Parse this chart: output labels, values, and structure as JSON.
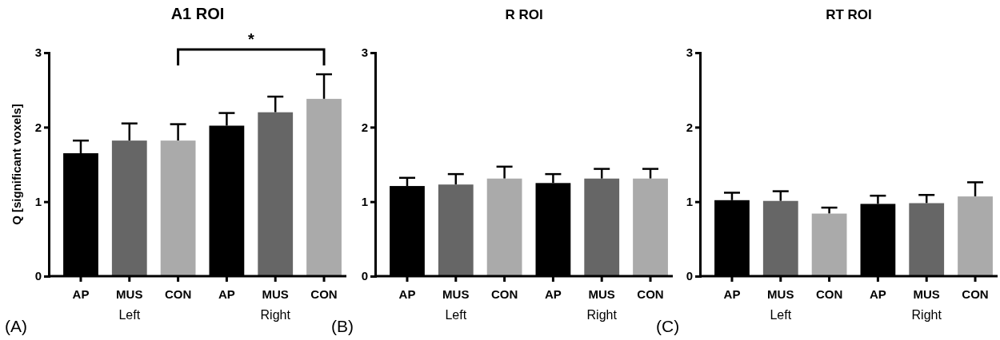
{
  "chart_data": [
    {
      "type": "bar",
      "title": "A1 ROI",
      "ylabel": "Q [significant voxels]",
      "categories": [
        "AP",
        "MUS",
        "CON",
        "AP",
        "MUS",
        "CON"
      ],
      "values": [
        1.65,
        1.82,
        1.82,
        2.02,
        2.2,
        2.38
      ],
      "colors": [
        "#000000",
        "#666666",
        "#aaaaaa",
        "#000000",
        "#666666",
        "#aaaaaa"
      ],
      "errors": [
        [
          1.65,
          1.82
        ],
        [
          1.82,
          2.05
        ],
        [
          1.82,
          2.04
        ],
        [
          2.02,
          2.19
        ],
        [
          2.2,
          2.41
        ],
        [
          2.38,
          2.71
        ]
      ],
      "ylim": [
        0,
        3
      ],
      "yticks": [
        0,
        1,
        2,
        3
      ],
      "grid": false,
      "annotations": [
        "(A)",
        "Left",
        "Right",
        "*"
      ]
    },
    {
      "type": "bar",
      "title": "R ROI",
      "categories": [
        "AP",
        "MUS",
        "CON",
        "AP",
        "MUS",
        "CON"
      ],
      "values": [
        1.21,
        1.23,
        1.31,
        1.25,
        1.31,
        1.31
      ],
      "colors": [
        "#000000",
        "#666666",
        "#aaaaaa",
        "#000000",
        "#666666",
        "#aaaaaa"
      ],
      "errors": [
        [
          1.21,
          1.32
        ],
        [
          1.23,
          1.37
        ],
        [
          1.31,
          1.47
        ],
        [
          1.25,
          1.37
        ],
        [
          1.31,
          1.44
        ],
        [
          1.31,
          1.44
        ]
      ],
      "ylim": [
        0,
        3
      ],
      "yticks": [
        0,
        1,
        2,
        3
      ],
      "grid": false,
      "annotations": [
        "(B)",
        "Left",
        "Right"
      ]
    },
    {
      "type": "bar",
      "title": "RT ROI",
      "categories": [
        "AP",
        "MUS",
        "CON",
        "AP",
        "MUS",
        "CON"
      ],
      "values": [
        1.02,
        1.01,
        0.84,
        0.97,
        0.98,
        1.07
      ],
      "colors": [
        "#000000",
        "#666666",
        "#aaaaaa",
        "#000000",
        "#666666",
        "#aaaaaa"
      ],
      "errors": [
        [
          1.02,
          1.12
        ],
        [
          1.01,
          1.14
        ],
        [
          0.84,
          0.92
        ],
        [
          0.97,
          1.08
        ],
        [
          0.98,
          1.09
        ],
        [
          1.07,
          1.26
        ]
      ],
      "ylim": [
        0,
        3
      ],
      "yticks": [
        0,
        1,
        2,
        3
      ],
      "grid": false,
      "annotations": [
        "(C)",
        "Left",
        "Right"
      ]
    }
  ]
}
